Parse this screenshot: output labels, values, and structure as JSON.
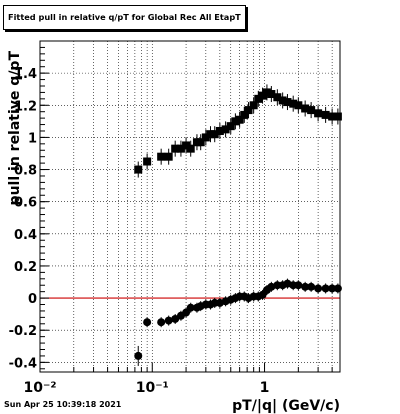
{
  "title": "Fitted pull in relative q/pT for Global Rec All EtapT",
  "timestamp": "Sun Apr 25 10:39:18 2021",
  "chart_data": {
    "type": "scatter",
    "title": "Fitted pull in relative q/pT for Global Rec All EtapT",
    "xlabel": "pT/|q| (GeV/c)",
    "ylabel": "pull in relative q/pT",
    "xscale": "log",
    "xlim": [
      0.01,
      4.7
    ],
    "ylim": [
      -0.46,
      1.6
    ],
    "grid": true,
    "x_tick_labels": [
      "10⁻²",
      "10⁻¹",
      "1"
    ],
    "y_tick_labels": [
      "-0.4",
      "-0.2",
      "0",
      "0.2",
      "0.4",
      "0.6",
      "0.8",
      "1",
      "1.2",
      "1.4"
    ],
    "reference_line": {
      "y": 0,
      "color": "#cc0000"
    },
    "series": [
      {
        "marker": "square",
        "x": [
          0.075,
          0.09,
          0.12,
          0.14,
          0.16,
          0.18,
          0.2,
          0.22,
          0.25,
          0.27,
          0.3,
          0.33,
          0.36,
          0.4,
          0.45,
          0.5,
          0.55,
          0.6,
          0.66,
          0.72,
          0.8,
          0.88,
          0.96,
          1.05,
          1.15,
          1.3,
          1.45,
          1.6,
          1.8,
          2.0,
          2.3,
          2.6,
          3.0,
          3.5,
          4.0,
          4.5
        ],
        "y": [
          0.8,
          0.85,
          0.88,
          0.88,
          0.93,
          0.93,
          0.95,
          0.93,
          0.97,
          0.97,
          1.0,
          1.02,
          1.02,
          1.04,
          1.05,
          1.07,
          1.1,
          1.11,
          1.14,
          1.17,
          1.2,
          1.24,
          1.26,
          1.28,
          1.27,
          1.25,
          1.23,
          1.22,
          1.21,
          1.2,
          1.18,
          1.17,
          1.15,
          1.14,
          1.13,
          1.13
        ]
      },
      {
        "marker": "circle",
        "x": [
          0.075,
          0.09,
          0.12,
          0.14,
          0.16,
          0.18,
          0.2,
          0.22,
          0.25,
          0.27,
          0.3,
          0.33,
          0.36,
          0.4,
          0.45,
          0.5,
          0.55,
          0.6,
          0.66,
          0.72,
          0.8,
          0.88,
          0.96,
          1.05,
          1.15,
          1.3,
          1.45,
          1.6,
          1.8,
          2.0,
          2.3,
          2.6,
          3.0,
          3.5,
          4.0,
          4.5
        ],
        "y": [
          -0.36,
          -0.15,
          -0.15,
          -0.14,
          -0.13,
          -0.11,
          -0.09,
          -0.06,
          -0.06,
          -0.05,
          -0.04,
          -0.04,
          -0.03,
          -0.03,
          -0.02,
          -0.01,
          0.0,
          0.01,
          0.01,
          0.0,
          0.01,
          0.01,
          0.02,
          0.05,
          0.07,
          0.08,
          0.08,
          0.09,
          0.08,
          0.08,
          0.07,
          0.07,
          0.06,
          0.06,
          0.06,
          0.06
        ]
      }
    ]
  }
}
